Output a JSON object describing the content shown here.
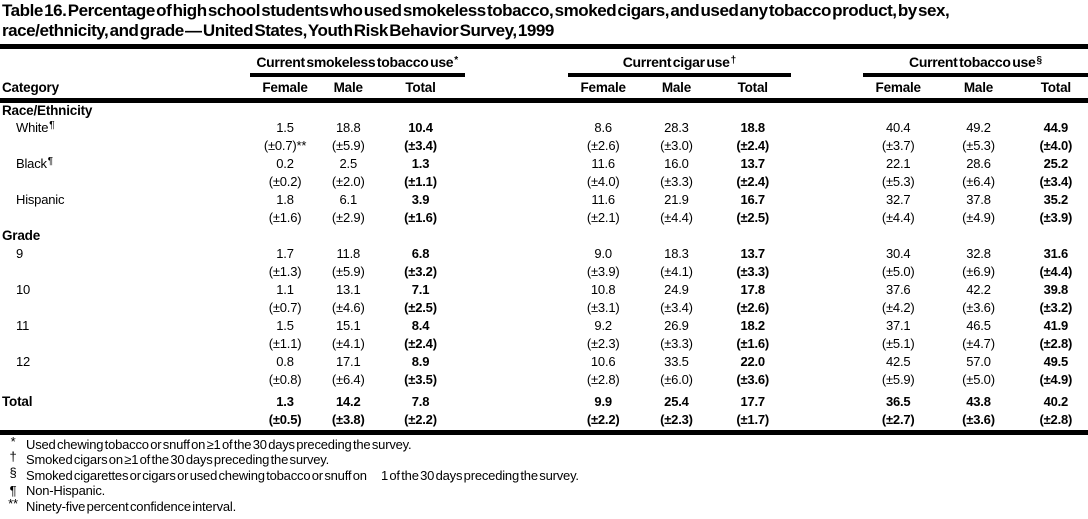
{
  "title_line1": "Table 16. Percentage of high school students who used smokeless tobacco, smoked cigars, and used any tobacco product, by sex,",
  "title_line2": "race/ethnicity, and grade — United States, Youth Risk Behavior Survey, 1999",
  "table": {
    "category_header": "Category",
    "sub_headers": [
      "Female",
      "Male",
      "Total"
    ],
    "col_groups": [
      {
        "label": "Current smokeless tobacco use",
        "marker": "*"
      },
      {
        "label": "Current cigar use",
        "marker": "†"
      },
      {
        "label": "Current tobacco use",
        "marker": "§"
      }
    ],
    "sections": [
      {
        "heading": "Race/Ethnicity",
        "rows": [
          {
            "label": "White",
            "marker": "¶",
            "values": [
              "1.5",
              "18.8",
              "10.4",
              "8.6",
              "28.3",
              "18.8",
              "40.4",
              "49.2",
              "44.9"
            ],
            "ci": [
              "(±0.7)**",
              "(±5.9)",
              "(±3.4)",
              "(±2.6)",
              "(±3.0)",
              "(±2.4)",
              "(±3.7)",
              "(±5.3)",
              "(±4.0)"
            ]
          },
          {
            "label": "Black",
            "marker": "¶",
            "values": [
              "0.2",
              "2.5",
              "1.3",
              "11.6",
              "16.0",
              "13.7",
              "22.1",
              "28.6",
              "25.2"
            ],
            "ci": [
              "(±0.2)",
              "(±2.0)",
              "(±1.1)",
              "(±4.0)",
              "(±3.3)",
              "(±2.4)",
              "(±5.3)",
              "(±6.4)",
              "(±3.4)"
            ]
          },
          {
            "label": "Hispanic",
            "marker": "",
            "values": [
              "1.8",
              "6.1",
              "3.9",
              "11.6",
              "21.9",
              "16.7",
              "32.7",
              "37.8",
              "35.2"
            ],
            "ci": [
              "(±1.6)",
              "(±2.9)",
              "(±1.6)",
              "(±2.1)",
              "(±4.4)",
              "(±2.5)",
              "(±4.4)",
              "(±4.9)",
              "(±3.9)"
            ]
          }
        ]
      },
      {
        "heading": "Grade",
        "rows": [
          {
            "label": "9",
            "marker": "",
            "values": [
              "1.7",
              "11.8",
              "6.8",
              "9.0",
              "18.3",
              "13.7",
              "30.4",
              "32.8",
              "31.6"
            ],
            "ci": [
              "(±1.3)",
              "(±5.9)",
              "(±3.2)",
              "(±3.9)",
              "(±4.1)",
              "(±3.3)",
              "(±5.0)",
              "(±6.9)",
              "(±4.4)"
            ]
          },
          {
            "label": "10",
            "marker": "",
            "values": [
              "1.1",
              "13.1",
              "7.1",
              "10.8",
              "24.9",
              "17.8",
              "37.6",
              "42.2",
              "39.8"
            ],
            "ci": [
              "(±0.7)",
              "(±4.6)",
              "(±2.5)",
              "(±3.1)",
              "(±3.4)",
              "(±2.6)",
              "(±4.2)",
              "(±3.6)",
              "(±3.2)"
            ]
          },
          {
            "label": "11",
            "marker": "",
            "values": [
              "1.5",
              "15.1",
              "8.4",
              "9.2",
              "26.9",
              "18.2",
              "37.1",
              "46.5",
              "41.9"
            ],
            "ci": [
              "(±1.1)",
              "(±4.1)",
              "(±2.4)",
              "(±2.3)",
              "(±3.3)",
              "(±1.6)",
              "(±5.1)",
              "(±4.7)",
              "(±2.8)"
            ]
          },
          {
            "label": "12",
            "marker": "",
            "values": [
              "0.8",
              "17.1",
              "8.9",
              "10.6",
              "33.5",
              "22.0",
              "42.5",
              "57.0",
              "49.5"
            ],
            "ci": [
              "(±0.8)",
              "(±6.4)",
              "(±3.5)",
              "(±2.8)",
              "(±6.0)",
              "(±3.6)",
              "(±5.9)",
              "(±5.0)",
              "(±4.9)"
            ]
          }
        ]
      }
    ],
    "total_row": {
      "label": "Total",
      "marker": "",
      "values": [
        "1.3",
        "14.2",
        "7.8",
        "9.9",
        "25.4",
        "17.7",
        "36.5",
        "43.8",
        "40.2"
      ],
      "ci": [
        "(±0.5)",
        "(±3.8)",
        "(±2.2)",
        "(±2.2)",
        "(±2.3)",
        "(±1.7)",
        "(±2.7)",
        "(±3.6)",
        "(±2.8)"
      ]
    }
  },
  "footnotes": [
    {
      "marker": "*",
      "text": "Used chewing tobacco or snuff on ≥1 of the 30 days preceding the survey."
    },
    {
      "marker": "†",
      "text": "Smoked cigars on ≥1 of the 30 days preceding the survey."
    },
    {
      "marker": "§",
      "text": "Smoked cigarettes or cigars or used chewing tobacco or snuff on  1 of the 30 days preceding the survey."
    },
    {
      "marker": "¶",
      "text": "Non-Hispanic."
    },
    {
      "marker": "**",
      "text": "Ninety-five percent confidence interval."
    }
  ]
}
